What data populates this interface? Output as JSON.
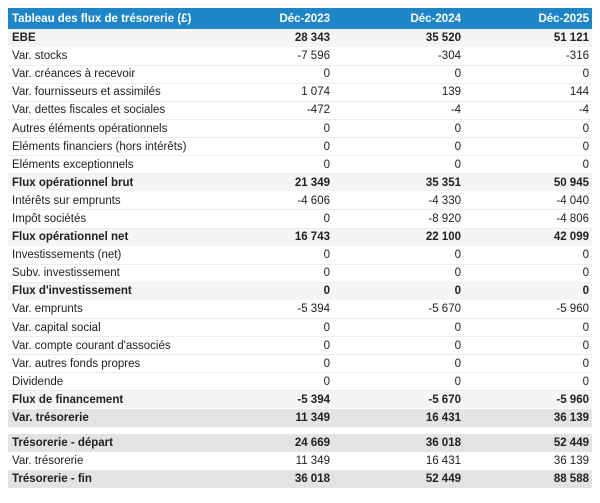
{
  "table": {
    "title": "Tableau des flux de trésorerie (£)",
    "header": {
      "columns": [
        "Déc-2023",
        "Déc-2024",
        "Déc-2025"
      ]
    },
    "rows": [
      {
        "label": "EBE",
        "values": [
          "28 343",
          "35 520",
          "51 121"
        ],
        "style": "subtotal"
      },
      {
        "label": "Var. stocks",
        "values": [
          "-7 596",
          "-304",
          "-316"
        ],
        "style": "normal"
      },
      {
        "label": "Var. créances à recevoir",
        "values": [
          "0",
          "0",
          "0"
        ],
        "style": "normal"
      },
      {
        "label": "Var. fournisseurs et assimilés",
        "values": [
          "1 074",
          "139",
          "144"
        ],
        "style": "normal"
      },
      {
        "label": "Var. dettes fiscales et sociales",
        "values": [
          "-472",
          "-4",
          "-4"
        ],
        "style": "normal"
      },
      {
        "label": "Autres éléments opérationnels",
        "values": [
          "0",
          "0",
          "0"
        ],
        "style": "normal"
      },
      {
        "label": "Eléments financiers (hors intérêts)",
        "values": [
          "0",
          "0",
          "0"
        ],
        "style": "normal"
      },
      {
        "label": "Eléments exceptionnels",
        "values": [
          "0",
          "0",
          "0"
        ],
        "style": "normal"
      },
      {
        "label": "Flux opérationnel brut",
        "values": [
          "21 349",
          "35 351",
          "50 945"
        ],
        "style": "subtotal"
      },
      {
        "label": "Intérêts sur emprunts",
        "values": [
          "-4 606",
          "-4 330",
          "-4 040"
        ],
        "style": "normal"
      },
      {
        "label": "Impôt sociétés",
        "values": [
          "0",
          "-8 920",
          "-4 806"
        ],
        "style": "normal"
      },
      {
        "label": "Flux opérationnel net",
        "values": [
          "16 743",
          "22 100",
          "42 099"
        ],
        "style": "subtotal"
      },
      {
        "label": "Investissements (net)",
        "values": [
          "0",
          "0",
          "0"
        ],
        "style": "normal"
      },
      {
        "label": "Subv. investissement",
        "values": [
          "0",
          "0",
          "0"
        ],
        "style": "normal"
      },
      {
        "label": "Flux d'investissement",
        "values": [
          "0",
          "0",
          "0"
        ],
        "style": "subtotal"
      },
      {
        "label": "Var. emprunts",
        "values": [
          "-5 394",
          "-5 670",
          "-5 960"
        ],
        "style": "normal"
      },
      {
        "label": "Var. capital social",
        "values": [
          "0",
          "0",
          "0"
        ],
        "style": "normal"
      },
      {
        "label": "Var. compte courant d'associés",
        "values": [
          "0",
          "0",
          "0"
        ],
        "style": "normal"
      },
      {
        "label": "Var. autres fonds propres",
        "values": [
          "0",
          "0",
          "0"
        ],
        "style": "normal"
      },
      {
        "label": "Dividende",
        "values": [
          "0",
          "0",
          "0"
        ],
        "style": "normal"
      },
      {
        "label": "Flux de financement",
        "values": [
          "-5 394",
          "-5 670",
          "-5 960"
        ],
        "style": "subtotal"
      },
      {
        "label": "Var. trésorerie",
        "values": [
          "11 349",
          "16 431",
          "36 139"
        ],
        "style": "total"
      },
      {
        "style": "spacer"
      },
      {
        "label": "Trésorerie - départ",
        "values": [
          "24 669",
          "36 018",
          "52 449"
        ],
        "style": "total"
      },
      {
        "label": "Var. trésorerie",
        "values": [
          "11 349",
          "16 431",
          "36 139"
        ],
        "style": "normal"
      },
      {
        "label": "Trésorerie - fin",
        "values": [
          "36 018",
          "52 449",
          "88 588"
        ],
        "style": "total"
      }
    ],
    "colors": {
      "header_bg": "#1E86C7",
      "header_text": "#FFFFFF",
      "subtotal_bg": "#F5F5F5",
      "total_bg": "#E3E3E3",
      "text": "#212121",
      "row_border": "#EDEDED"
    }
  }
}
